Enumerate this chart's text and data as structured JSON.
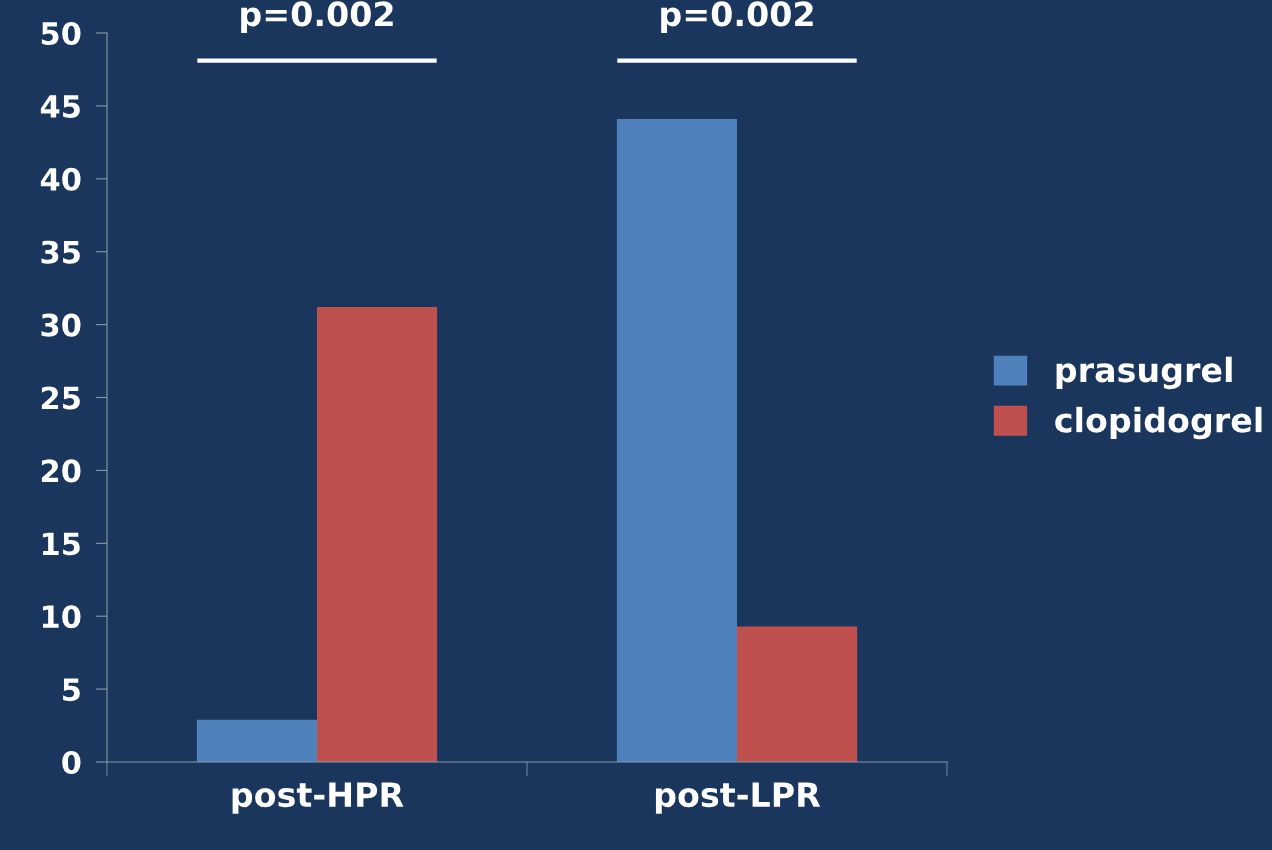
{
  "chart_data": {
    "type": "bar",
    "categories": [
      "post-HPR",
      "post-LPR"
    ],
    "series": [
      {
        "name": "prasugrel",
        "color": "#4f81bd",
        "values": [
          2.9,
          44.1
        ]
      },
      {
        "name": "clopidogrel",
        "color": "#c0504d",
        "values": [
          31.2,
          9.3
        ]
      }
    ],
    "ylim": [
      0,
      50
    ],
    "yticks": [
      0,
      5,
      10,
      15,
      20,
      25,
      30,
      35,
      40,
      45,
      50
    ],
    "annotations": [
      "p=0.002",
      "p=0.002"
    ],
    "grid": false,
    "legend": "right"
  }
}
